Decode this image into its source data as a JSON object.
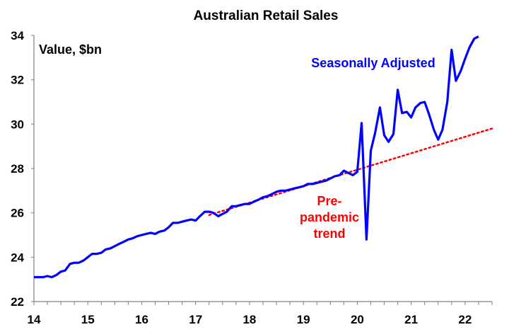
{
  "chart_data": {
    "type": "line",
    "title": "Australian Retail Sales",
    "ylabel": "Value, $bn",
    "xlabel": "",
    "x_ticks": [
      "14",
      "15",
      "16",
      "17",
      "18",
      "19",
      "20",
      "21",
      "22"
    ],
    "y_ticks": [
      "22",
      "24",
      "26",
      "28",
      "30",
      "32",
      "34"
    ],
    "xlim": [
      2014,
      2022.5
    ],
    "ylim": [
      22,
      34
    ],
    "grid": false,
    "legend": "none",
    "annotations": {
      "sa_line1": "Seasonally Adjusted",
      "trend_line1": "Pre-",
      "trend_line2": "pandemic",
      "trend_line3": "trend"
    },
    "colors": {
      "seasonally_adjusted": "#0000ff",
      "trend": "#ff0000",
      "axis": "#808080"
    },
    "series": [
      {
        "name": "Seasonally Adjusted",
        "style": "solid",
        "x": [
          2014.0,
          2014.08,
          2014.17,
          2014.25,
          2014.33,
          2014.42,
          2014.5,
          2014.58,
          2014.67,
          2014.75,
          2014.83,
          2014.92,
          2015.0,
          2015.08,
          2015.17,
          2015.25,
          2015.33,
          2015.42,
          2015.5,
          2015.58,
          2015.67,
          2015.75,
          2015.83,
          2015.92,
          2016.0,
          2016.08,
          2016.17,
          2016.25,
          2016.33,
          2016.42,
          2016.5,
          2016.58,
          2016.67,
          2016.75,
          2016.83,
          2016.92,
          2017.0,
          2017.08,
          2017.17,
          2017.25,
          2017.33,
          2017.42,
          2017.5,
          2017.58,
          2017.67,
          2017.75,
          2017.83,
          2017.92,
          2018.0,
          2018.08,
          2018.17,
          2018.25,
          2018.33,
          2018.42,
          2018.5,
          2018.58,
          2018.67,
          2018.75,
          2018.83,
          2018.92,
          2019.0,
          2019.08,
          2019.17,
          2019.25,
          2019.33,
          2019.42,
          2019.5,
          2019.58,
          2019.67,
          2019.75,
          2019.83,
          2019.92,
          2020.0,
          2020.08,
          2020.17,
          2020.25,
          2020.33,
          2020.42,
          2020.5,
          2020.58,
          2020.67,
          2020.75,
          2020.83,
          2020.92,
          2021.0,
          2021.08,
          2021.17,
          2021.25,
          2021.33,
          2021.42,
          2021.5,
          2021.58,
          2021.67,
          2021.75,
          2021.83,
          2021.92,
          2022.0,
          2022.08,
          2022.17,
          2022.25
        ],
        "values": [
          23.1,
          23.1,
          23.1,
          23.15,
          23.1,
          23.2,
          23.35,
          23.4,
          23.7,
          23.75,
          23.75,
          23.85,
          24.0,
          24.15,
          24.15,
          24.2,
          24.35,
          24.4,
          24.5,
          24.6,
          24.7,
          24.8,
          24.85,
          24.95,
          25.0,
          25.05,
          25.1,
          25.05,
          25.15,
          25.2,
          25.35,
          25.55,
          25.55,
          25.6,
          25.65,
          25.7,
          25.65,
          25.85,
          26.05,
          26.05,
          26.0,
          25.85,
          25.95,
          26.05,
          26.3,
          26.3,
          26.35,
          26.4,
          26.4,
          26.5,
          26.6,
          26.7,
          26.75,
          26.85,
          26.95,
          27.0,
          27.0,
          27.05,
          27.1,
          27.15,
          27.2,
          27.3,
          27.3,
          27.35,
          27.4,
          27.45,
          27.55,
          27.65,
          27.7,
          27.9,
          27.8,
          27.7,
          27.85,
          30.05,
          24.8,
          28.8,
          29.6,
          30.75,
          29.5,
          29.2,
          29.55,
          31.55,
          30.5,
          30.55,
          30.3,
          30.75,
          30.95,
          31.0,
          30.45,
          29.75,
          29.3,
          29.75,
          31.0,
          33.35,
          31.95,
          32.4,
          32.95,
          33.45,
          33.85,
          33.95
        ]
      },
      {
        "name": "Pre-pandemic trend",
        "style": "dotted",
        "x": [
          2017.25,
          2022.5
        ],
        "values": [
          25.9,
          29.8
        ]
      }
    ]
  }
}
